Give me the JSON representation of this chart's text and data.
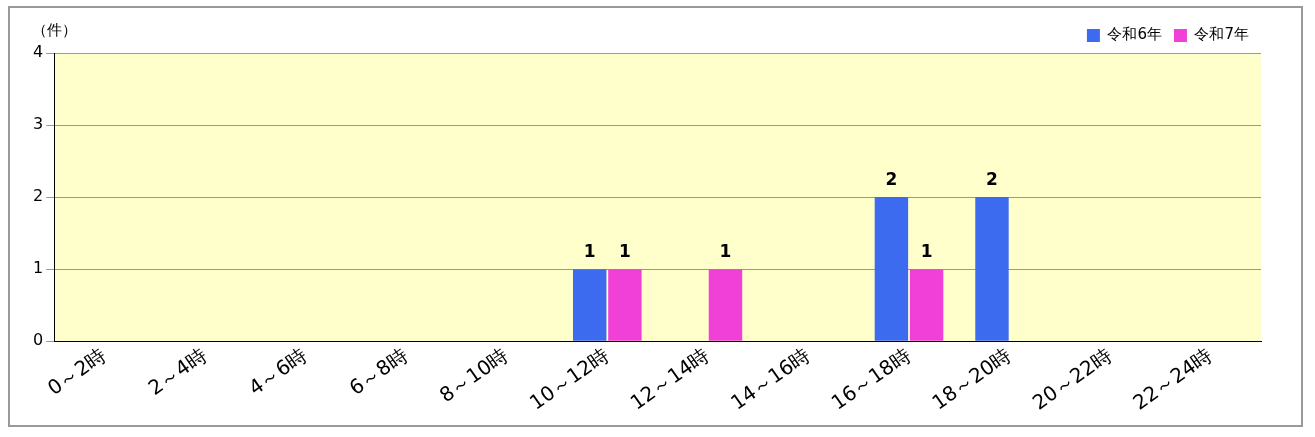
{
  "chart_data": {
    "type": "bar",
    "ylabel": "（件）",
    "categories": [
      "0～2時",
      "2～4時",
      "4～6時",
      "6～8時",
      "8～10時",
      "10～12時",
      "12～14時",
      "14～16時",
      "16～18時",
      "18～20時",
      "20～22時",
      "22～24時"
    ],
    "series": [
      {
        "name": "令和6年",
        "color": "#3d6bf0",
        "values": [
          0,
          0,
          0,
          0,
          0,
          1,
          0,
          0,
          2,
          2,
          0,
          0
        ],
        "value_labels": [
          null,
          null,
          null,
          null,
          null,
          "1",
          null,
          null,
          "2",
          "2",
          null,
          null
        ]
      },
      {
        "name": "令和7年",
        "color": "#f040d8",
        "values": [
          0,
          0,
          0,
          0,
          0,
          1,
          1,
          0,
          1,
          0,
          0,
          0
        ],
        "value_labels": [
          null,
          null,
          null,
          null,
          null,
          "1",
          "1",
          null,
          "1",
          null,
          null,
          null
        ]
      }
    ],
    "ylim": [
      0,
      4
    ],
    "yticks": [
      0,
      1,
      2,
      3,
      4
    ],
    "grid": "y",
    "legend": "top right"
  }
}
